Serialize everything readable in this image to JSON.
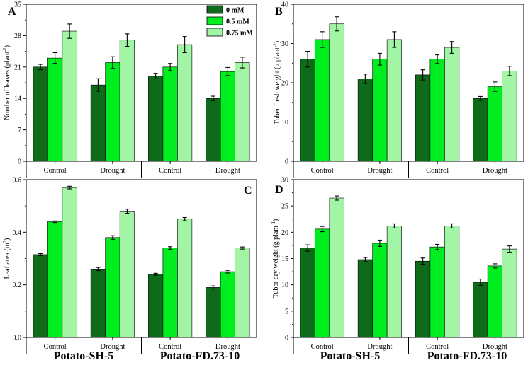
{
  "colors": {
    "c0": "#0e6b1a",
    "c1": "#00ee1f",
    "c2": "#a3f5a6"
  },
  "legend": [
    "0 mM",
    "0.5 mM",
    "0.75 mM"
  ],
  "group_labels": [
    "Potato-SH-5",
    "Potato-FD.73-10"
  ],
  "chart_data": [
    {
      "type": "bar",
      "panel": "A",
      "ylabel": "Number of leaves (plant",
      "ylabel_sup": "-1",
      "ylabel_end": ")",
      "ylim": [
        0,
        35
      ],
      "yticks": [
        0,
        7,
        14,
        21,
        28,
        35
      ],
      "ytick_labels": [
        "0",
        "7",
        "14",
        "21",
        "28",
        "35"
      ],
      "categories": [
        "Control",
        "Drought",
        "Control",
        "Drought"
      ],
      "legend_placement": "top-right",
      "series": [
        {
          "name": "0 mM",
          "values": [
            21,
            17,
            19,
            14
          ],
          "errors": [
            0.6,
            1.4,
            0.6,
            0.5
          ]
        },
        {
          "name": "0.5 mM",
          "values": [
            23,
            22,
            21,
            20
          ],
          "errors": [
            1.2,
            1.3,
            0.8,
            0.9
          ]
        },
        {
          "name": "0.75 mM",
          "values": [
            29,
            27,
            26,
            22
          ],
          "errors": [
            1.6,
            1.4,
            1.8,
            1.2
          ]
        }
      ]
    },
    {
      "type": "bar",
      "panel": "B",
      "ylabel": "Tuber fresh weight (g plant",
      "ylabel_sup": "-1",
      "ylabel_end": ")",
      "ylim": [
        0,
        40
      ],
      "yticks": [
        0,
        10,
        20,
        30,
        40
      ],
      "ytick_labels": [
        "0",
        "10",
        "20",
        "30",
        "40"
      ],
      "categories": [
        "Control",
        "Drought",
        "Control",
        "Drought"
      ],
      "series": [
        {
          "name": "0 mM",
          "values": [
            26,
            21,
            22,
            16
          ],
          "errors": [
            2.0,
            1.2,
            1.3,
            0.5
          ]
        },
        {
          "name": "0.5 mM",
          "values": [
            31,
            26,
            26,
            19
          ],
          "errors": [
            2.0,
            1.5,
            1.1,
            1.2
          ]
        },
        {
          "name": "0.75 mM",
          "values": [
            35,
            31,
            29,
            23
          ],
          "errors": [
            1.8,
            2.0,
            1.5,
            1.2
          ]
        }
      ]
    },
    {
      "type": "bar",
      "panel": "C",
      "ylabel": "Leaf area (m",
      "ylabel_sup": "2",
      "ylabel_end": ")",
      "ylim": [
        0,
        0.6
      ],
      "yticks": [
        0,
        0.2,
        0.4,
        0.6
      ],
      "ytick_labels": [
        "0.0",
        "0.2",
        "0.4",
        "0.6"
      ],
      "categories": [
        "Control",
        "Drought",
        "Control",
        "Drought"
      ],
      "series": [
        {
          "name": "0 mM",
          "values": [
            0.315,
            0.26,
            0.24,
            0.19
          ],
          "errors": [
            0.004,
            0.006,
            0.004,
            0.006
          ]
        },
        {
          "name": "0.5 mM",
          "values": [
            0.44,
            0.38,
            0.34,
            0.25
          ],
          "errors": [
            0.003,
            0.007,
            0.005,
            0.005
          ]
        },
        {
          "name": "0.75 mM",
          "values": [
            0.57,
            0.48,
            0.45,
            0.34
          ],
          "errors": [
            0.005,
            0.008,
            0.006,
            0.004
          ]
        }
      ]
    },
    {
      "type": "bar",
      "panel": "D",
      "ylabel": "Tuber dry weight (g plant",
      "ylabel_sup": "-1",
      "ylabel_end": ")",
      "ylim": [
        0,
        30
      ],
      "yticks": [
        0,
        5,
        10,
        15,
        20,
        25,
        30
      ],
      "ytick_labels": [
        "0",
        "5",
        "10",
        "15",
        "20",
        "25",
        "30"
      ],
      "categories": [
        "Control",
        "Drought",
        "Control",
        "Drought"
      ],
      "series": [
        {
          "name": "0 mM",
          "values": [
            17,
            14.8,
            14.5,
            10.5
          ],
          "errors": [
            0.6,
            0.4,
            0.6,
            0.6
          ]
        },
        {
          "name": "0.5 mM",
          "values": [
            20.6,
            17.9,
            17.2,
            13.6
          ],
          "errors": [
            0.5,
            0.6,
            0.5,
            0.4
          ]
        },
        {
          "name": "0.75 mM",
          "values": [
            26.5,
            21.2,
            21.2,
            16.8
          ],
          "errors": [
            0.4,
            0.4,
            0.4,
            0.6
          ]
        }
      ]
    }
  ]
}
